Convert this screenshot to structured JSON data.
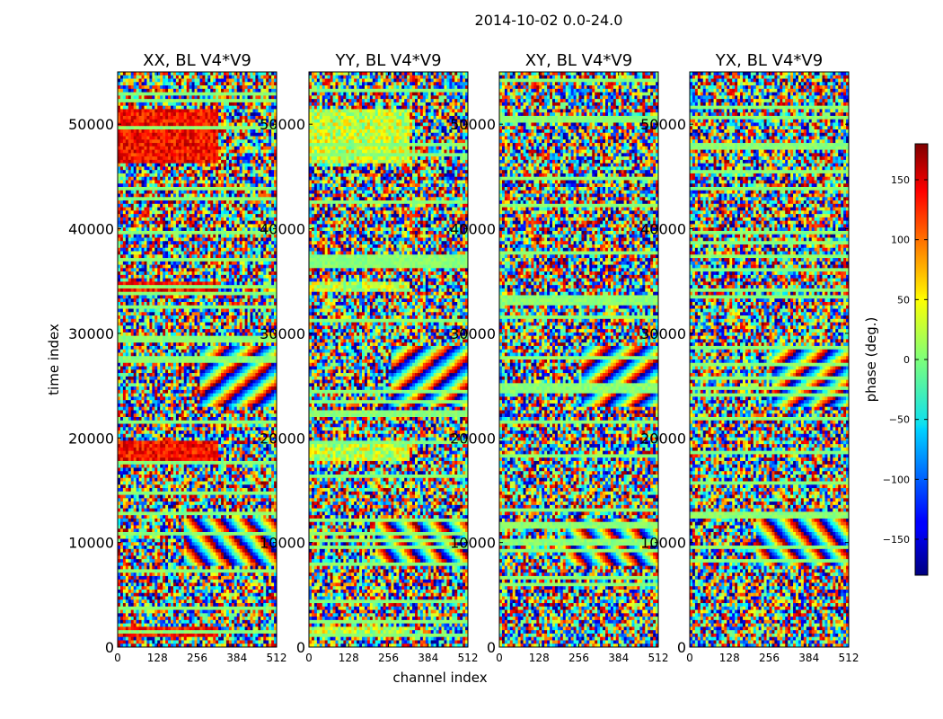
{
  "chart_data": {
    "type": "heatmap",
    "suptitle": "2014-10-02 0.0-24.0",
    "colormap": "jet",
    "xlabel": "channel index",
    "ylabel": "time index",
    "xlim": [
      0,
      512
    ],
    "ylim": [
      0,
      55000
    ],
    "xticks": [
      0,
      128,
      256,
      384,
      512
    ],
    "yticks": [
      0,
      10000,
      20000,
      30000,
      40000,
      50000
    ],
    "panels": [
      {
        "title": "XX, BL V4*V9",
        "pol": "XX"
      },
      {
        "title": "YY, BL V4*V9",
        "pol": "YY"
      },
      {
        "title": "XY, BL V4*V9",
        "pol": "XY"
      },
      {
        "title": "YX, BL V4*V9",
        "pol": "YX"
      }
    ],
    "colorbar": {
      "label": "phase (deg.)",
      "vmin": -180,
      "vmax": 180,
      "ticks": [
        -150,
        -100,
        -50,
        0,
        50,
        100,
        150
      ],
      "tick_labels": [
        "−150",
        "−100",
        "−50",
        "0",
        "50",
        "100",
        "150"
      ]
    }
  }
}
